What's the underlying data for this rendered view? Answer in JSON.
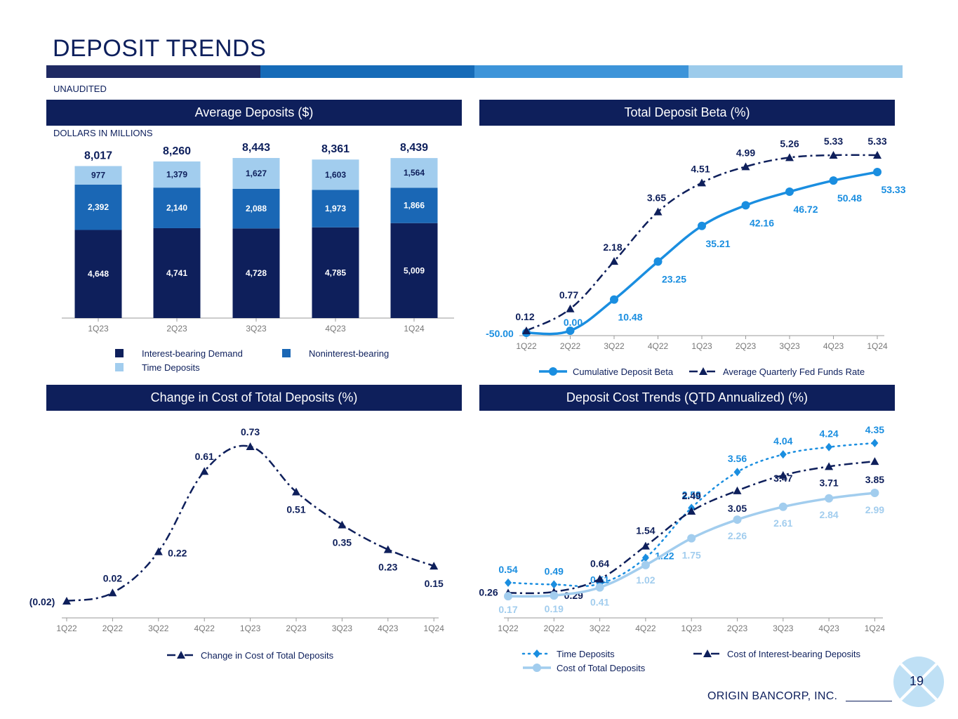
{
  "page": {
    "title": "DEPOSIT TRENDS",
    "unaudited": "UNAUDITED",
    "footer": "ORIGIN BANCORP, INC.",
    "page_number": "19",
    "strip_colors": [
      "#1f2a63",
      "#166bb8",
      "#3d94d9",
      "#9ccbeb"
    ]
  },
  "panels": {
    "avg_deposits": "Average Deposits ($)",
    "beta": "Total Deposit Beta (%)",
    "change": "Change in Cost of Total Deposits (%)",
    "cost_trends": "Deposit Cost Trends (QTD Annualized) (%)",
    "units": "DOLLARS IN MILLIONS"
  },
  "chart_data": [
    {
      "id": "avg_deposits",
      "type": "bar",
      "stacked": true,
      "title": "Average Deposits ($)",
      "categories": [
        "1Q23",
        "2Q23",
        "3Q23",
        "4Q23",
        "1Q24"
      ],
      "series": [
        {
          "name": "Interest-bearing Demand",
          "color": "#0e1f5b",
          "values": [
            4648,
            4741,
            4728,
            4785,
            5009
          ],
          "labels": [
            "4,648",
            "4,741",
            "4,728",
            "4,785",
            "5,009"
          ]
        },
        {
          "name": "Noninterest-bearing",
          "color": "#1a67b5",
          "values": [
            2392,
            2140,
            2088,
            1973,
            1866
          ],
          "labels": [
            "2,392",
            "2,140",
            "2,088",
            "1,973",
            "1,866"
          ]
        },
        {
          "name": "Time Deposits",
          "color": "#a2cdee",
          "values": [
            977,
            1379,
            1627,
            1603,
            1564
          ],
          "labels": [
            "977",
            "1,379",
            "1,627",
            "1,603",
            "1,564"
          ]
        }
      ],
      "totals": [
        "8,017",
        "8,260",
        "8,443",
        "8,361",
        "8,439"
      ],
      "ylim": [
        0,
        8443
      ]
    },
    {
      "id": "beta",
      "type": "line",
      "title": "Total Deposit Beta (%)",
      "categories": [
        "1Q22",
        "2Q22",
        "3Q22",
        "4Q22",
        "1Q23",
        "2Q23",
        "3Q23",
        "4Q23",
        "1Q24"
      ],
      "series": [
        {
          "name": "Cumulative Deposit Beta",
          "color": "#1a8ee0",
          "style": "solid",
          "marker": "circle",
          "values": [
            -50.0,
            0.0,
            10.48,
            23.25,
            35.21,
            42.16,
            46.72,
            50.48,
            53.33
          ],
          "labels": [
            "-50.00",
            "0.00",
            "10.48",
            "23.25",
            "35.21",
            "42.16",
            "46.72",
            "50.48",
            "53.33"
          ]
        },
        {
          "name": "Average Quarterly Fed Funds Rate",
          "color": "#0e1f5b",
          "style": "dashdot",
          "marker": "triangle",
          "values": [
            0.12,
            0.77,
            2.18,
            3.65,
            4.51,
            4.99,
            5.26,
            5.33,
            5.33
          ],
          "labels": [
            "0.12",
            "0.77",
            "2.18",
            "3.65",
            "4.51",
            "4.99",
            "5.26",
            "5.33",
            "5.33"
          ]
        }
      ]
    },
    {
      "id": "change",
      "type": "line",
      "title": "Change in Cost of Total Deposits (%)",
      "categories": [
        "1Q22",
        "2Q22",
        "3Q22",
        "4Q22",
        "1Q23",
        "2Q23",
        "3Q23",
        "4Q23",
        "1Q24"
      ],
      "series": [
        {
          "name": "Change in Cost of Total Deposits",
          "color": "#0e1f5b",
          "style": "dashdot",
          "marker": "triangle",
          "values": [
            -0.02,
            0.02,
            0.22,
            0.61,
            0.73,
            0.51,
            0.35,
            0.23,
            0.15
          ],
          "labels": [
            "(0.02)",
            "0.02",
            "0.22",
            "0.61",
            "0.73",
            "0.51",
            "0.35",
            "0.23",
            "0.15"
          ]
        }
      ],
      "ylim": [
        -0.02,
        0.73
      ]
    },
    {
      "id": "cost_trends",
      "type": "line",
      "title": "Deposit Cost Trends (QTD Annualized) (%)",
      "categories": [
        "1Q22",
        "2Q22",
        "3Q22",
        "4Q22",
        "1Q23",
        "2Q23",
        "3Q23",
        "4Q23",
        "1Q24"
      ],
      "series": [
        {
          "name": "Time Deposits",
          "color": "#1a8ee0",
          "style": "dotted",
          "marker": "diamond",
          "values": [
            0.54,
            0.49,
            0.51,
            1.22,
            2.58,
            3.56,
            4.04,
            4.24,
            4.35
          ],
          "labels": [
            "0.54",
            "0.49",
            "0.51",
            "1.22",
            "2.58",
            "3.56",
            "4.04",
            "4.24",
            "4.35"
          ]
        },
        {
          "name": "Cost of Interest-bearing Deposits",
          "color": "#0e1f5b",
          "style": "dashdot",
          "marker": "triangle",
          "values": [
            0.26,
            0.29,
            0.64,
            1.54,
            2.49,
            3.05,
            3.47,
            3.71,
            3.85
          ],
          "labels": [
            "0.26",
            "0.29",
            "0.64",
            "1.54",
            "2.49",
            "3.05",
            "3.47",
            "3.71",
            "3.85"
          ]
        },
        {
          "name": "Cost of Total Deposits",
          "color": "#a2cdee",
          "style": "solid",
          "marker": "circle",
          "values": [
            0.17,
            0.19,
            0.41,
            1.02,
            1.75,
            2.26,
            2.61,
            2.84,
            2.99
          ],
          "labels": [
            "0.17",
            "0.19",
            "0.41",
            "1.02",
            "1.75",
            "2.26",
            "2.61",
            "2.84",
            "2.99"
          ]
        }
      ],
      "ylim": [
        0,
        4.35
      ]
    }
  ]
}
